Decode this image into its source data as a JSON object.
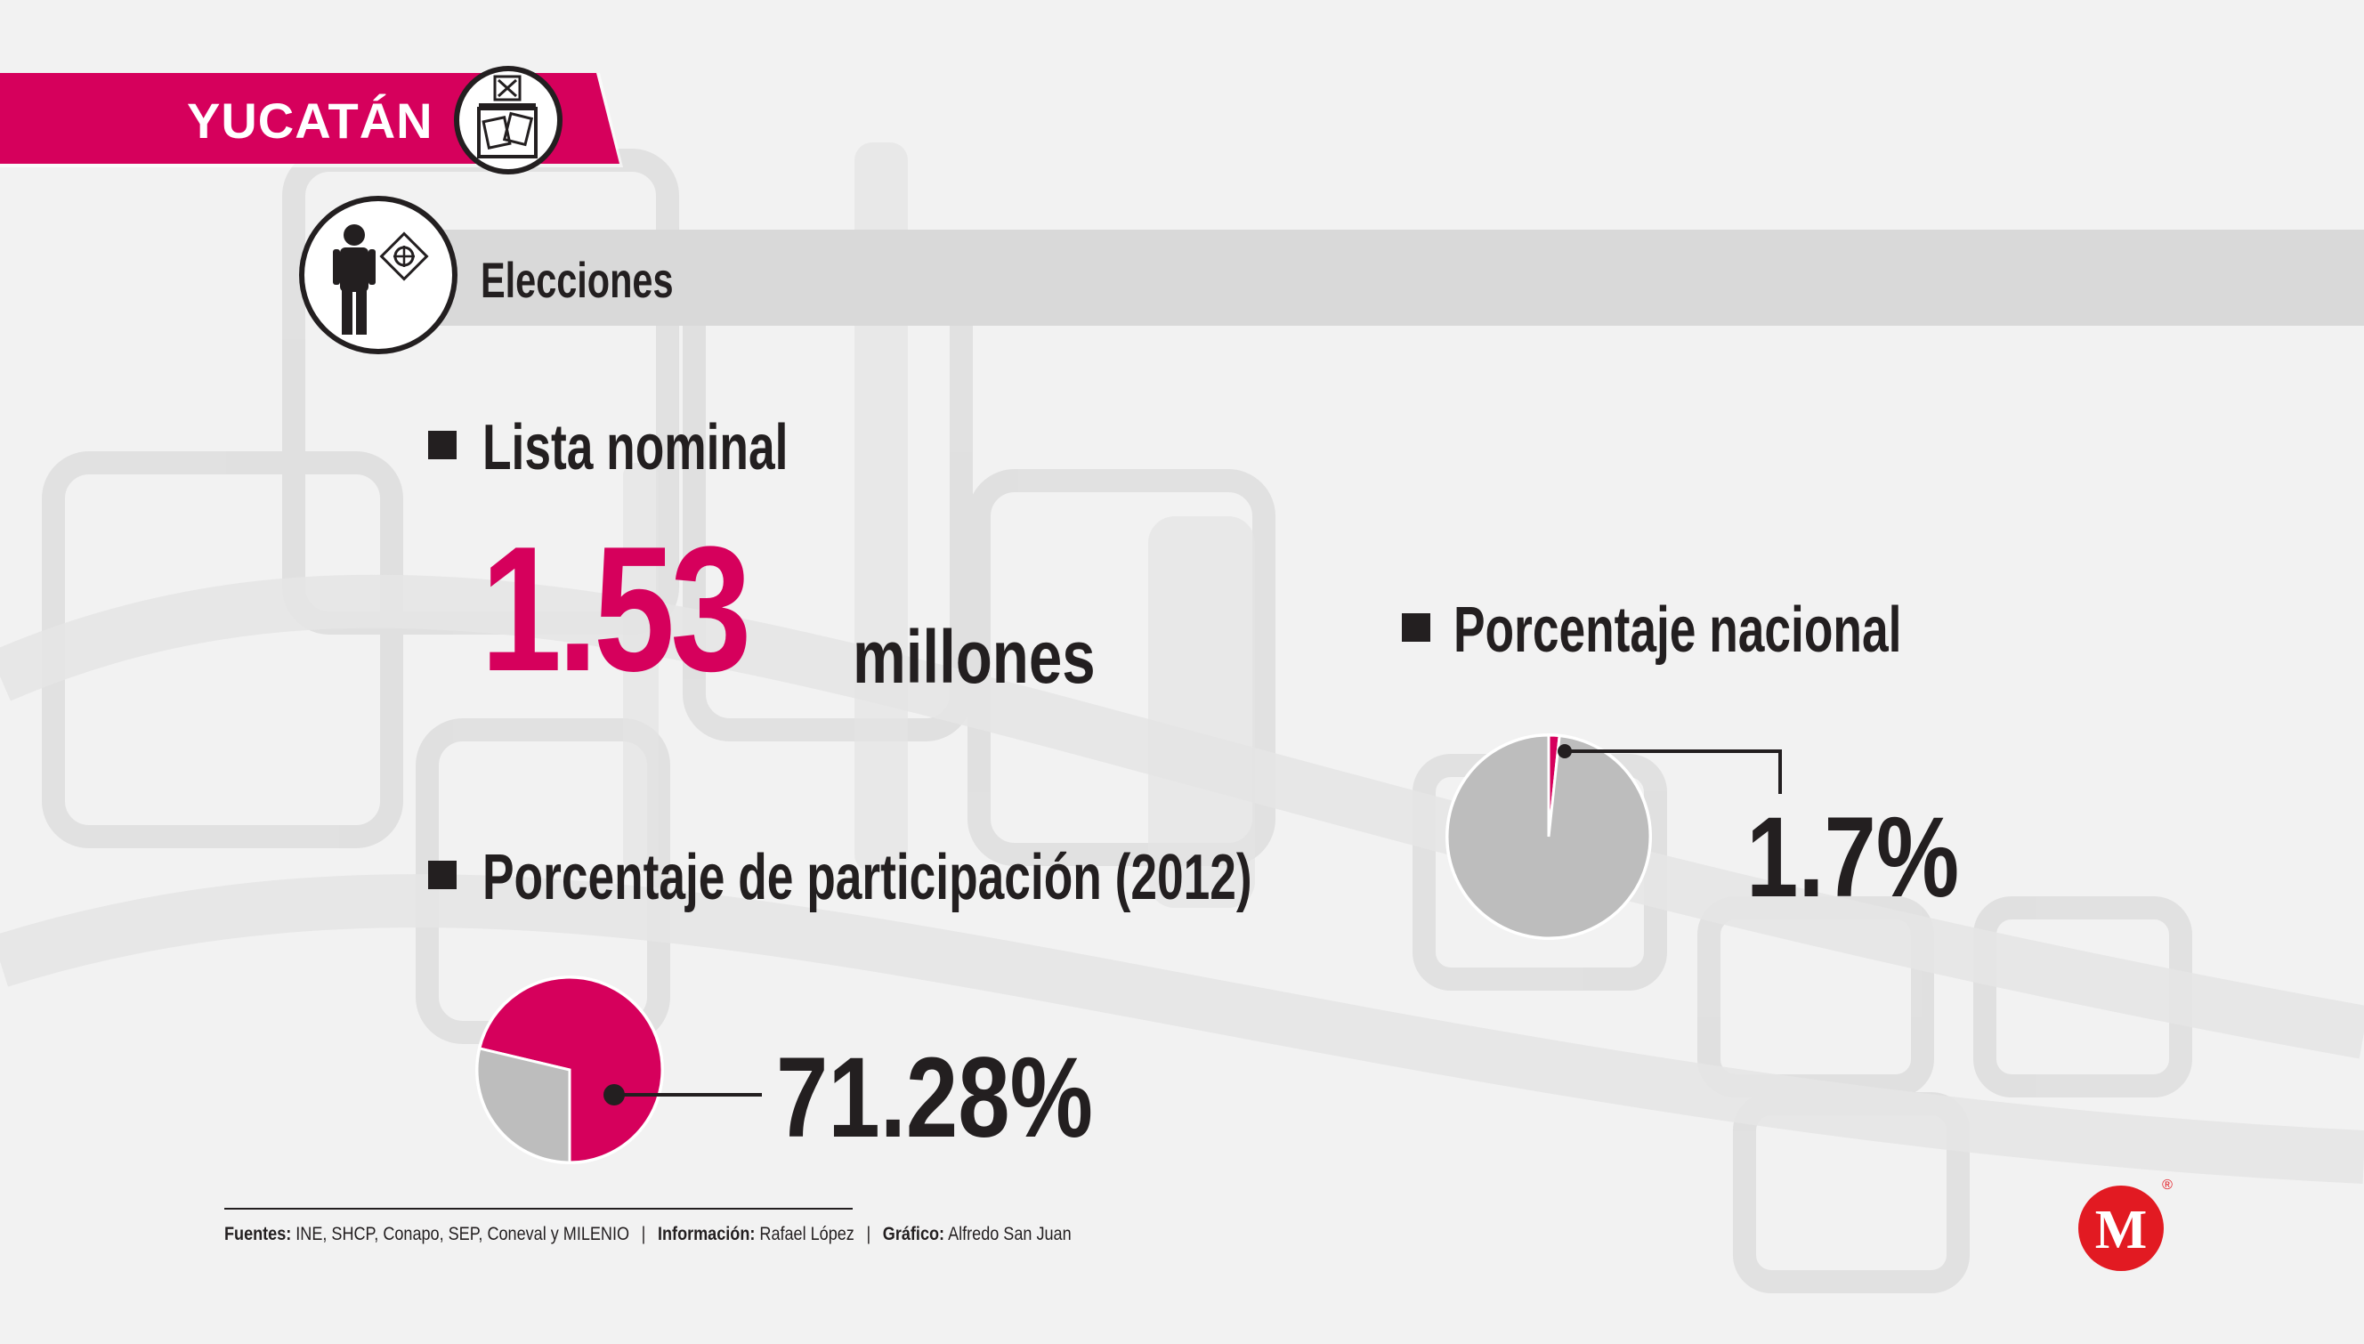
{
  "colors": {
    "accent": "#d6005c",
    "dark": "#231f20",
    "gray_slice": "#bdbdbd",
    "section_bar": "#d9d9d9",
    "logo_red": "#e21a22"
  },
  "header": {
    "state": "YUCATÁN",
    "state_icon": "ballot-box-icon",
    "section_icon": "voter-icon",
    "section_title": "Elecciones"
  },
  "lista_nominal": {
    "label": "Lista nominal",
    "value": "1.53",
    "unit": "millones"
  },
  "chart_data": [
    {
      "type": "pie",
      "title": "Porcentaje nacional",
      "slices": [
        {
          "label": "Yucatán",
          "value": 1.7,
          "color": "#d6005c"
        },
        {
          "label": "",
          "value": 98.3,
          "color": "#bdbdbd"
        }
      ],
      "value_label": "1.7%"
    },
    {
      "type": "pie",
      "title": "Porcentaje de participación (2012)",
      "slices": [
        {
          "label": "Participación",
          "value": 71.28,
          "color": "#d6005c"
        },
        {
          "label": "",
          "value": 28.72,
          "color": "#bdbdbd"
        }
      ],
      "value_label": "71.28%"
    }
  ],
  "credits": {
    "fuentes_label": "Fuentes:",
    "fuentes": "INE, SHCP, Conapo, SEP, Coneval y MILENIO",
    "informacion_label": "Información:",
    "informacion": "Rafael López",
    "grafico_label": "Gráfico:",
    "grafico": "Alfredo San Juan"
  },
  "logo": {
    "letter": "M",
    "mark": "®"
  }
}
